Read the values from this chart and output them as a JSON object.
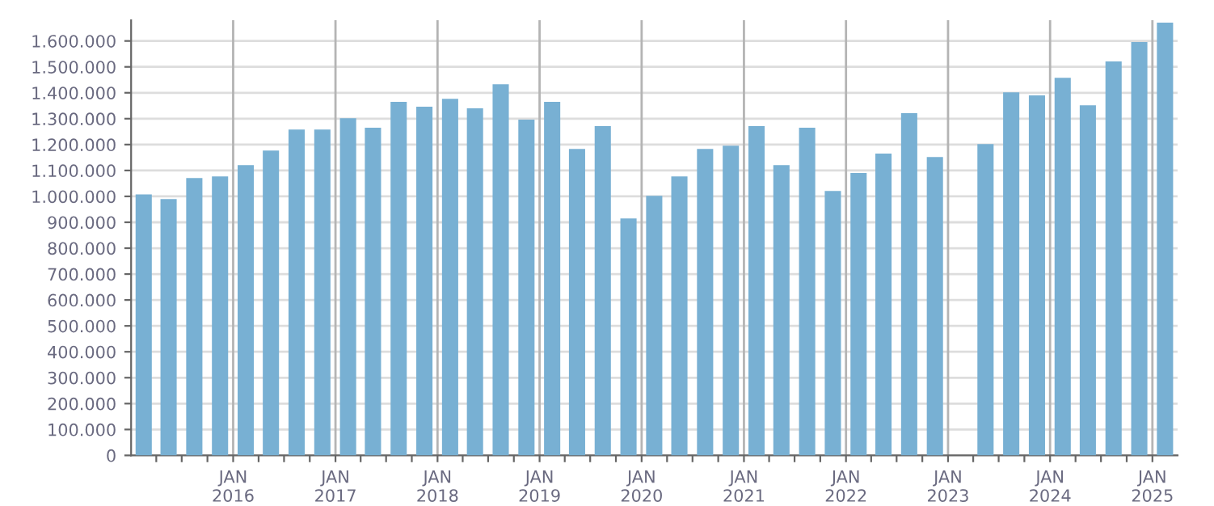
{
  "chart_data": {
    "type": "bar",
    "x": [
      "2015-02-15",
      "2015-05-15",
      "2015-08-15",
      "2015-11-15",
      "2016-02-15",
      "2016-05-15",
      "2016-08-15",
      "2016-11-15",
      "2017-02-15",
      "2017-05-15",
      "2017-08-15",
      "2017-11-15",
      "2018-02-15",
      "2018-05-15",
      "2018-08-15",
      "2018-11-15",
      "2019-02-15",
      "2019-05-15",
      "2019-08-15",
      "2019-11-15",
      "2020-02-15",
      "2020-05-15",
      "2020-08-15",
      "2020-11-15",
      "2021-02-15",
      "2021-05-15",
      "2021-08-15",
      "2021-11-15",
      "2022-02-15",
      "2022-05-15",
      "2022-08-15",
      "2022-11-15",
      "2023-02-15",
      "2023-05-15",
      "2023-08-15",
      "2023-11-15",
      "2024-02-15",
      "2024-05-15",
      "2024-08-15",
      "2024-11-15",
      "2025-02-15"
    ],
    "values": [
      1008000,
      990000,
      1071000,
      1077000,
      1121000,
      1177000,
      1258000,
      1258000,
      1302000,
      1265000,
      1365000,
      1346000,
      1377000,
      1340000,
      1433000,
      1296000,
      1365000,
      1183000,
      1271000,
      915000,
      1002000,
      1077000,
      1183000,
      1196000,
      1271000,
      1121000,
      1265000,
      1021000,
      1090000,
      1165000,
      1321000,
      1152000,
      null,
      1202000,
      1402000,
      1390000,
      1458000,
      1352000,
      1521000,
      1596000,
      1671000
    ],
    "color": "#78b0d3",
    "xlim": [
      "2015-01-01",
      "2025-04-01"
    ],
    "xticks": [
      {
        "value": "2015-04-01",
        "label": null
      },
      {
        "value": "2015-07-01",
        "label": null
      },
      {
        "value": "2015-10-01",
        "label": null
      },
      {
        "value": "2016-01-01",
        "label": "JAN\n2016"
      },
      {
        "value": "2016-04-01",
        "label": null
      },
      {
        "value": "2016-07-01",
        "label": null
      },
      {
        "value": "2016-10-01",
        "label": null
      },
      {
        "value": "2017-01-01",
        "label": "JAN\n2017"
      },
      {
        "value": "2017-04-01",
        "label": null
      },
      {
        "value": "2017-07-01",
        "label": null
      },
      {
        "value": "2017-10-01",
        "label": null
      },
      {
        "value": "2018-01-01",
        "label": "JAN\n2018"
      },
      {
        "value": "2018-04-01",
        "label": null
      },
      {
        "value": "2018-07-01",
        "label": null
      },
      {
        "value": "2018-10-01",
        "label": null
      },
      {
        "value": "2019-01-01",
        "label": "JAN\n2019"
      },
      {
        "value": "2019-04-01",
        "label": null
      },
      {
        "value": "2019-07-01",
        "label": null
      },
      {
        "value": "2019-10-01",
        "label": null
      },
      {
        "value": "2020-01-01",
        "label": "JAN\n2020"
      },
      {
        "value": "2020-04-01",
        "label": null
      },
      {
        "value": "2020-07-01",
        "label": null
      },
      {
        "value": "2020-10-01",
        "label": null
      },
      {
        "value": "2021-01-01",
        "label": "JAN\n2021"
      },
      {
        "value": "2021-04-01",
        "label": null
      },
      {
        "value": "2021-07-01",
        "label": null
      },
      {
        "value": "2021-10-01",
        "label": null
      },
      {
        "value": "2022-01-01",
        "label": "JAN\n2022"
      },
      {
        "value": "2022-04-01",
        "label": null
      },
      {
        "value": "2022-07-01",
        "label": null
      },
      {
        "value": "2022-10-01",
        "label": null
      },
      {
        "value": "2023-01-01",
        "label": "JAN\n2023"
      },
      {
        "value": "2023-04-01",
        "label": null
      },
      {
        "value": "2023-07-01",
        "label": null
      },
      {
        "value": "2023-10-01",
        "label": null
      },
      {
        "value": "2024-01-01",
        "label": "JAN\n2024"
      },
      {
        "value": "2024-04-01",
        "label": null
      },
      {
        "value": "2024-07-01",
        "label": null
      },
      {
        "value": "2024-10-01",
        "label": null
      },
      {
        "value": "2025-01-01",
        "label": "JAN\n2025"
      }
    ],
    "ylim": [
      0,
      1680000
    ],
    "yticks": [
      0,
      {
        "value": 100000,
        "label": "100.000"
      },
      {
        "value": 200000,
        "label": "200.000"
      },
      {
        "value": 300000,
        "label": "300.000"
      },
      {
        "value": 400000,
        "label": "400.000"
      },
      {
        "value": 500000,
        "label": "500.000"
      },
      {
        "value": 600000,
        "label": "600.000"
      },
      {
        "value": 700000,
        "label": "700.000"
      },
      {
        "value": 800000,
        "label": "800.000"
      },
      {
        "value": 900000,
        "label": "900.000"
      },
      {
        "value": 1000000,
        "label": "1.000.000"
      },
      {
        "value": 1100000,
        "label": "1.100.000"
      },
      {
        "value": 1200000,
        "label": "1.200.000"
      },
      {
        "value": 1300000,
        "label": "1.300.000"
      },
      {
        "value": 1400000,
        "label": "1.400.000"
      },
      {
        "value": 1500000,
        "label": "1.500.000"
      },
      {
        "value": 1600000,
        "label": "1.600.000"
      }
    ],
    "grid": true
  }
}
